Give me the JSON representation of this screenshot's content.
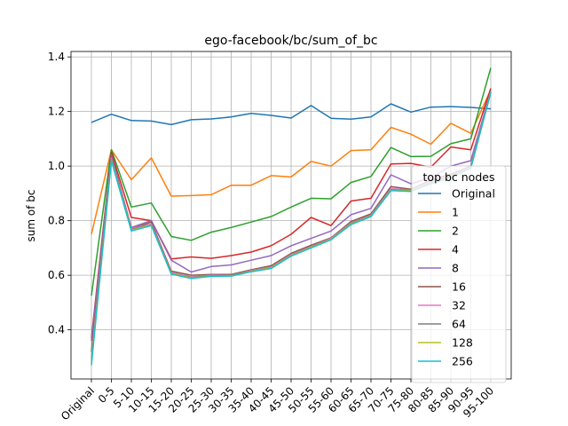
{
  "chart_data": {
    "type": "line",
    "title": "ego-facebook/bc/sum_of_bc",
    "xlabel": "",
    "ylabel": "sum of bc",
    "categories": [
      "Original",
      "0-5",
      "5-10",
      "10-15",
      "15-20",
      "20-25",
      "25-30",
      "30-35",
      "35-40",
      "40-45",
      "45-50",
      "50-55",
      "55-60",
      "60-65",
      "65-70",
      "70-75",
      "75-80",
      "80-85",
      "85-90",
      "90-95",
      "95-100"
    ],
    "ylim": [
      0.22,
      1.42
    ],
    "yticks": [
      0.4,
      0.6,
      0.8,
      1.0,
      1.2,
      1.4
    ],
    "ytick_labels": [
      "0.4",
      "0.6",
      "0.8",
      "1.0",
      "1.2",
      "1.4"
    ],
    "grid": true,
    "legend": {
      "title": "top bc nodes",
      "placement": "right"
    },
    "series": [
      {
        "name": "Original",
        "color": "#1f77b4",
        "values": [
          1.16,
          1.19,
          1.167,
          1.165,
          1.152,
          1.17,
          1.173,
          1.18,
          1.193,
          1.186,
          1.176,
          1.222,
          1.175,
          1.172,
          1.18,
          1.228,
          1.198,
          1.216,
          1.218,
          1.215,
          1.21
        ]
      },
      {
        "name": "1",
        "color": "#ff7f0e",
        "values": [
          0.75,
          1.06,
          0.95,
          1.03,
          0.89,
          0.892,
          0.895,
          0.93,
          0.93,
          0.965,
          0.96,
          1.017,
          1.0,
          1.057,
          1.06,
          1.142,
          1.117,
          1.08,
          1.157,
          1.12,
          1.28
        ]
      },
      {
        "name": "2",
        "color": "#2ca02c",
        "values": [
          0.525,
          1.06,
          0.85,
          0.865,
          0.742,
          0.728,
          0.758,
          0.775,
          0.795,
          0.815,
          0.85,
          0.882,
          0.88,
          0.94,
          0.962,
          1.068,
          1.035,
          1.036,
          1.082,
          1.1,
          1.36
        ]
      },
      {
        "name": "4",
        "color": "#d62728",
        "values": [
          0.37,
          1.05,
          0.812,
          0.8,
          0.66,
          0.667,
          0.662,
          0.672,
          0.685,
          0.708,
          0.75,
          0.812,
          0.782,
          0.872,
          0.882,
          1.008,
          1.01,
          0.996,
          1.07,
          1.06,
          1.285
        ]
      },
      {
        "name": "8",
        "color": "#9467bd",
        "values": [
          0.36,
          1.04,
          0.775,
          0.8,
          0.655,
          0.612,
          0.632,
          0.638,
          0.655,
          0.672,
          0.708,
          0.735,
          0.762,
          0.822,
          0.845,
          0.968,
          0.935,
          0.958,
          1.0,
          1.02,
          1.275
        ]
      },
      {
        "name": "16",
        "color": "#8c564b",
        "values": [
          0.32,
          1.035,
          0.77,
          0.795,
          0.615,
          0.6,
          0.603,
          0.603,
          0.62,
          0.635,
          0.68,
          0.71,
          0.737,
          0.797,
          0.825,
          0.925,
          0.915,
          0.95,
          0.97,
          1.0,
          1.27
        ]
      },
      {
        "name": "32",
        "color": "#e377c2",
        "values": [
          0.3,
          1.03,
          0.77,
          0.788,
          0.61,
          0.594,
          0.6,
          0.6,
          0.617,
          0.63,
          0.676,
          0.705,
          0.735,
          0.792,
          0.82,
          0.918,
          0.912,
          0.945,
          0.965,
          0.997,
          1.272
        ]
      },
      {
        "name": "64",
        "color": "#7f7f7f",
        "values": [
          0.29,
          1.025,
          0.768,
          0.785,
          0.607,
          0.592,
          0.598,
          0.6,
          0.615,
          0.628,
          0.673,
          0.703,
          0.733,
          0.79,
          0.818,
          0.914,
          0.91,
          0.94,
          0.962,
          0.995,
          1.27
        ]
      },
      {
        "name": "128",
        "color": "#bcbd22",
        "values": [
          0.28,
          1.022,
          0.765,
          0.784,
          0.606,
          0.59,
          0.597,
          0.598,
          0.614,
          0.627,
          0.672,
          0.702,
          0.732,
          0.788,
          0.817,
          0.912,
          0.909,
          0.938,
          0.96,
          0.994,
          1.27
        ]
      },
      {
        "name": "256",
        "color": "#17becf",
        "values": [
          0.27,
          1.02,
          0.762,
          0.782,
          0.604,
          0.588,
          0.596,
          0.597,
          0.613,
          0.625,
          0.67,
          0.7,
          0.73,
          0.786,
          0.815,
          0.91,
          0.907,
          0.935,
          0.958,
          0.992,
          1.27
        ]
      }
    ]
  }
}
